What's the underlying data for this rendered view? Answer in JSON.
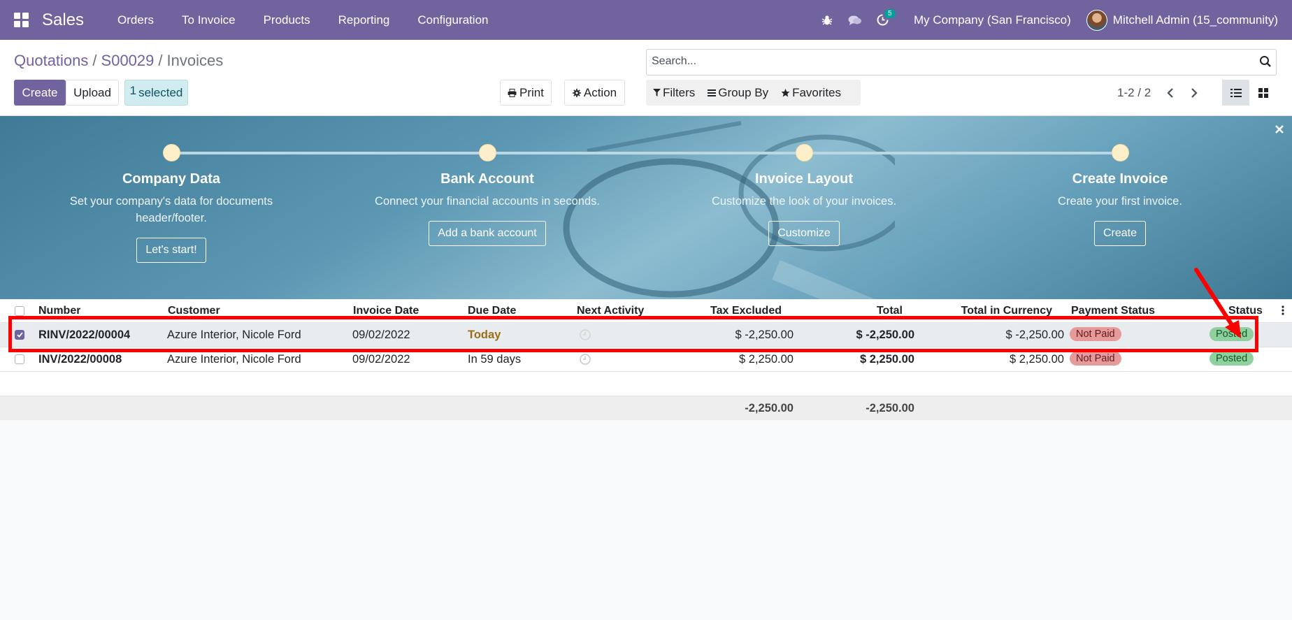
{
  "navbar": {
    "app_name": "Sales",
    "menu": [
      "Orders",
      "To Invoice",
      "Products",
      "Reporting",
      "Configuration"
    ],
    "activity_count": "5",
    "company": "My Company (San Francisco)",
    "user": "Mitchell Admin (15_community)"
  },
  "control_panel": {
    "breadcrumb": [
      "Quotations",
      "S00029",
      "Invoices"
    ],
    "breadcrumb_sep": "/",
    "create_label": "Create",
    "upload_label": "Upload",
    "selected_count": "1",
    "selected_label": "selected",
    "print_label": "Print",
    "action_label": "Action",
    "search_placeholder": "Search...",
    "filters_label": "Filters",
    "groupby_label": "Group By",
    "favorites_label": "Favorites",
    "pager": "1-2 / 2"
  },
  "banner": {
    "steps": [
      {
        "title": "Company Data",
        "desc": "Set your company's data for documents header/footer.",
        "button": "Let's start!"
      },
      {
        "title": "Bank Account",
        "desc": "Connect your financial accounts in seconds.",
        "button": "Add a bank account"
      },
      {
        "title": "Invoice Layout",
        "desc": "Customize the look of your invoices.",
        "button": "Customize"
      },
      {
        "title": "Create Invoice",
        "desc": "Create your first invoice.",
        "button": "Create"
      }
    ]
  },
  "table": {
    "columns": [
      "Number",
      "Customer",
      "Invoice Date",
      "Due Date",
      "Next Activity",
      "Tax Excluded",
      "Total",
      "Total in Currency",
      "Payment Status",
      "Status"
    ],
    "rows": [
      {
        "number": "RINV/2022/00004",
        "customer": "Azure Interior, Nicole Ford",
        "invoice_date": "09/02/2022",
        "due_date": "Today",
        "tax_excluded": "$ -2,250.00",
        "total": "$ -2,250.00",
        "total_currency": "$ -2,250.00",
        "payment_status": "Not Paid",
        "status": "Posted",
        "selected": true
      },
      {
        "number": "INV/2022/00008",
        "customer": "Azure Interior, Nicole Ford",
        "invoice_date": "09/02/2022",
        "due_date": "In 59 days",
        "tax_excluded": "$ 2,250.00",
        "total": "$ 2,250.00",
        "total_currency": "$ 2,250.00",
        "payment_status": "Not Paid",
        "status": "Posted",
        "selected": false
      }
    ],
    "footer": {
      "tax_excluded": "-2,250.00",
      "total": "-2,250.00"
    }
  },
  "colors": {
    "brand": "#71639e",
    "annotation": "#ff0000",
    "status_posted": "#8fd19e",
    "payment_not_paid": "#e79a9a"
  }
}
